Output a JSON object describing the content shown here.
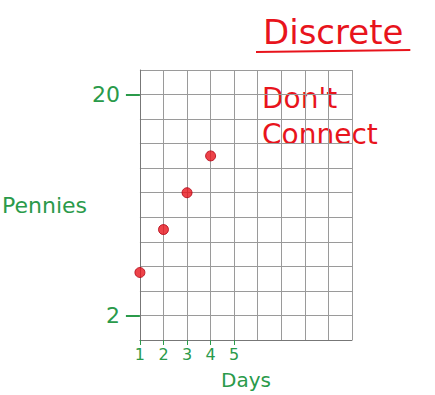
{
  "chart_data": {
    "type": "scatter",
    "title": "Discrete",
    "annotation": "Don't Connect",
    "x_label": "Days",
    "y_label": "Pennies",
    "x": [
      1,
      2,
      3,
      4
    ],
    "values": [
      5.5,
      9,
      12,
      15
    ],
    "xlim": [
      1,
      10
    ],
    "xticks": [
      1,
      2,
      3,
      4,
      5
    ],
    "ylim": [
      0,
      22
    ],
    "yticks": [
      2,
      20
    ],
    "grid": true,
    "color": "#e8141c",
    "marker": "circle"
  }
}
